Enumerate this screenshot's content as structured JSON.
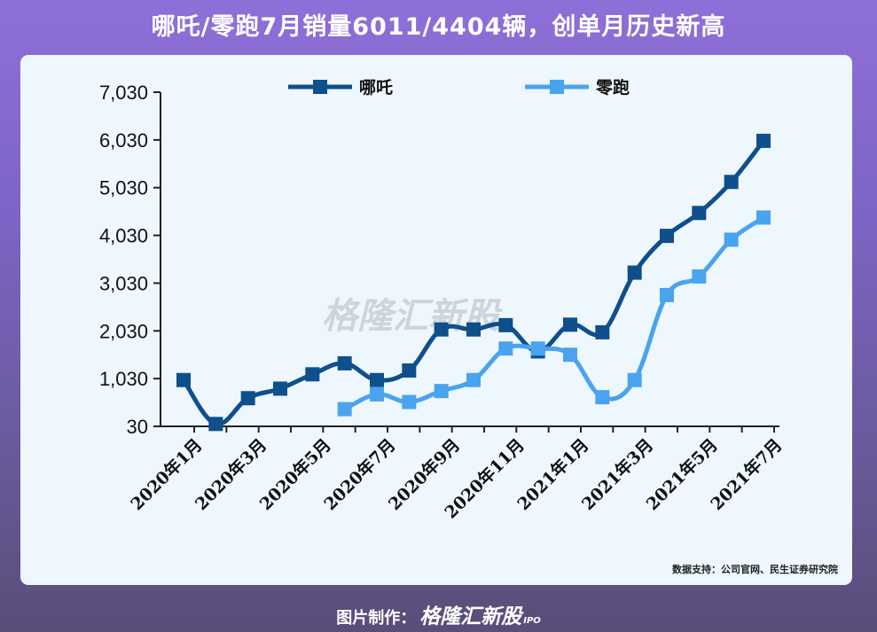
{
  "title": "哪吒/零跑7月销量6011/4404辆，创单月历史新高",
  "source_note": "数据支持：公司官网、民生证券研究院",
  "footer": {
    "prefix": "图片制作：",
    "brand": "格隆汇新股",
    "suffix": "IPO"
  },
  "watermark": "格隆汇新股",
  "colors": {
    "nezha": "#0f4f8c",
    "leapmotor": "#4aa3ef"
  },
  "chart_data": {
    "type": "line",
    "title": "",
    "xlabel": "",
    "ylabel": "",
    "ylim": [
      30,
      7030
    ],
    "yticks": [
      30,
      1030,
      2030,
      3030,
      4030,
      5030,
      6030,
      7030
    ],
    "ytick_labels": [
      "30",
      "1,030",
      "2,030",
      "3,030",
      "4,030",
      "5,030",
      "6,030",
      "7,030"
    ],
    "x": [
      "2020年1月",
      "2020年2月",
      "2020年3月",
      "2020年4月",
      "2020年5月",
      "2020年6月",
      "2020年7月",
      "2020年8月",
      "2020年9月",
      "2020年10月",
      "2020年11月",
      "2020年12月",
      "2021年1月",
      "2021年2月",
      "2021年3月",
      "2021年4月",
      "2021年5月",
      "2021年6月",
      "2021年7月"
    ],
    "x_tick_labels": [
      "2020年1月",
      "2020年3月",
      "2020年5月",
      "2020年7月",
      "2020年9月",
      "2020年11月",
      "2021年1月",
      "2021年3月",
      "2021年5月",
      "2021年7月"
    ],
    "legend_position": "top",
    "grid": false,
    "series": [
      {
        "name": "哪吒",
        "color": "#0f4f8c",
        "values": [
          1000,
          80,
          620,
          820,
          1120,
          1350,
          1000,
          1200,
          2060,
          2060,
          2150,
          1600,
          2160,
          2000,
          3250,
          4020,
          4500,
          5150,
          6011
        ]
      },
      {
        "name": "零跑",
        "color": "#4aa3ef",
        "values": [
          null,
          null,
          null,
          null,
          null,
          390,
          700,
          540,
          770,
          1000,
          1660,
          1660,
          1530,
          640,
          1000,
          2780,
          3170,
          3940,
          4404
        ]
      }
    ]
  }
}
